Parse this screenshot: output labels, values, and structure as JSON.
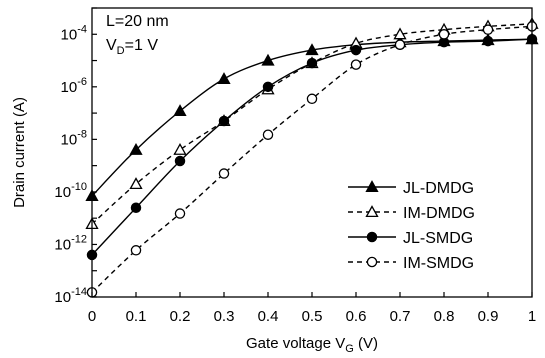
{
  "chart_data": {
    "type": "scatter",
    "xlabel": "Gate voltage V",
    "xlabel_sub": "G",
    "xlabel_unit": " (V)",
    "ylabel": "Drain current (A)",
    "xlim": [
      0,
      1
    ],
    "ylim": [
      1e-14,
      0.001
    ],
    "yscale": "log",
    "grid": false,
    "legend_position": "right-center",
    "x_ticks": [
      "0",
      "0.1",
      "0.2",
      "0.3",
      "0.4",
      "0.5",
      "0.6",
      "0.7",
      "0.8",
      "0.9",
      "1"
    ],
    "y_ticks": [
      {
        "base": "10",
        "exp": "-14"
      },
      {
        "base": "10",
        "exp": "-12"
      },
      {
        "base": "10",
        "exp": "-10"
      },
      {
        "base": "10",
        "exp": "-8"
      },
      {
        "base": "10",
        "exp": "-6"
      },
      {
        "base": "10",
        "exp": "-4"
      }
    ],
    "annotations": {
      "line1": "L=20 nm",
      "line2_main": "V",
      "line2_sub": "D",
      "line2_rest": "=1 V"
    },
    "x": [
      0,
      0.1,
      0.2,
      0.3,
      0.4,
      0.5,
      0.6,
      0.7,
      0.8,
      0.9,
      1.0
    ],
    "series": [
      {
        "name": "JL-DMDG",
        "marker": "triangle-filled",
        "line": "solid",
        "values": [
          7e-11,
          4e-09,
          1.2e-07,
          2e-06,
          1e-05,
          2.5e-05,
          4e-05,
          5e-05,
          5.5e-05,
          6e-05,
          6.5e-05
        ]
      },
      {
        "name": "IM-DMDG",
        "marker": "triangle-open",
        "line": "dashed",
        "values": [
          6e-12,
          2e-10,
          4e-09,
          5e-08,
          8e-07,
          8e-06,
          4.5e-05,
          0.0001,
          0.00015,
          0.0002,
          0.00025
        ]
      },
      {
        "name": "JL-SMDG",
        "marker": "circle-filled",
        "line": "solid",
        "values": [
          4e-13,
          2.5e-11,
          1.5e-09,
          5e-08,
          1e-06,
          8e-06,
          2.5e-05,
          4e-05,
          5e-05,
          5.5e-05,
          6.5e-05
        ]
      },
      {
        "name": "IM-SMDG",
        "marker": "circle-open",
        "line": "dashed",
        "values": [
          1.5e-14,
          6e-13,
          1.5e-11,
          5e-10,
          1.5e-08,
          3.5e-07,
          7e-06,
          4e-05,
          0.0001,
          0.00015,
          0.0002
        ]
      }
    ]
  }
}
